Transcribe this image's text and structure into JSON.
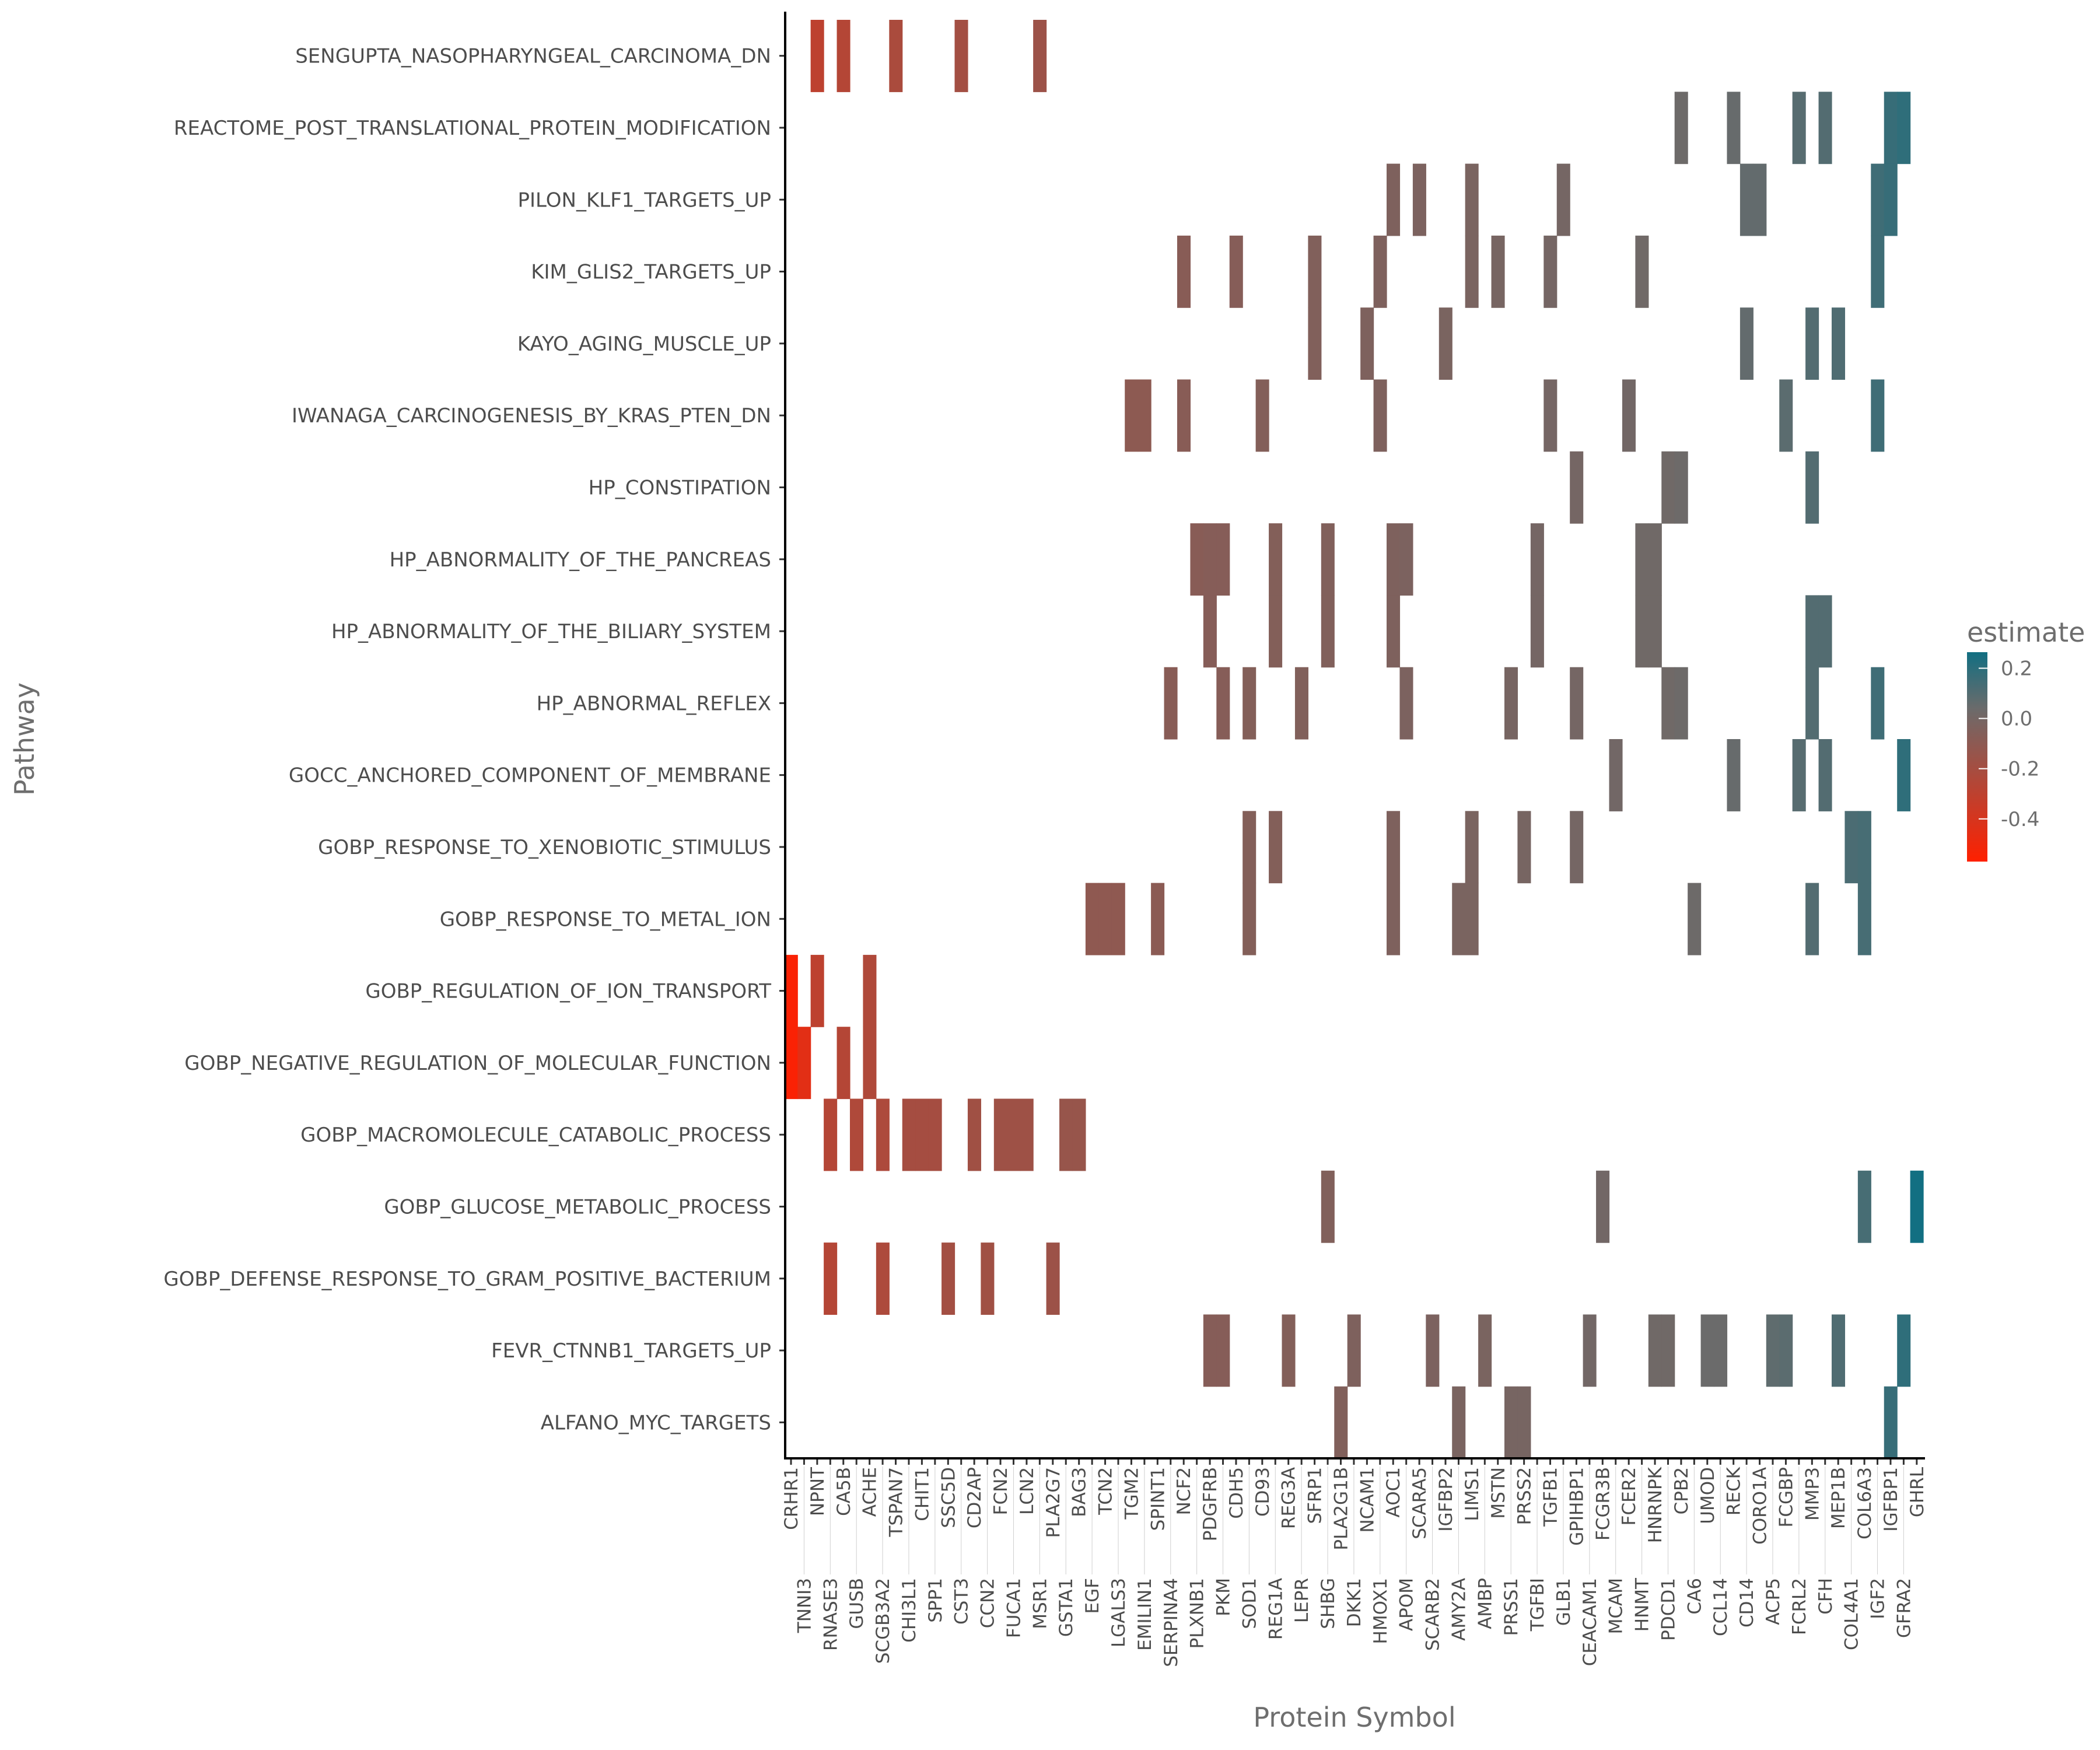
{
  "chart_data": {
    "type": "heatmap",
    "xlabel": "Protein Symbol",
    "ylabel": "Pathway",
    "legend": {
      "title": "estimate",
      "ticks": [
        0.2,
        0.0,
        -0.2,
        -0.4
      ],
      "range": [
        -0.57,
        0.264
      ],
      "placement": "right"
    },
    "colors": {
      "low": "#ff2000",
      "mid": "#6b6b6b",
      "high": "#126f82",
      "mid_value": 0.04
    },
    "grid": false,
    "pathways": [
      "SENGUPTA_NASOPHARYNGEAL_CARCINOMA_DN",
      "REACTOME_POST_TRANSLATIONAL_PROTEIN_MODIFICATION",
      "PILON_KLF1_TARGETS_UP",
      "KIM_GLIS2_TARGETS_UP",
      "KAYO_AGING_MUSCLE_UP",
      "IWANAGA_CARCINOGENESIS_BY_KRAS_PTEN_DN",
      "HP_CONSTIPATION",
      "HP_ABNORMALITY_OF_THE_PANCREAS",
      "HP_ABNORMALITY_OF_THE_BILIARY_SYSTEM",
      "HP_ABNORMAL_REFLEX",
      "GOCC_ANCHORED_COMPONENT_OF_MEMBRANE",
      "GOBP_RESPONSE_TO_XENOBIOTIC_STIMULUS",
      "GOBP_RESPONSE_TO_METAL_ION",
      "GOBP_REGULATION_OF_ION_TRANSPORT",
      "GOBP_NEGATIVE_REGULATION_OF_MOLECULAR_FUNCTION",
      "GOBP_MACROMOLECULE_CATABOLIC_PROCESS",
      "GOBP_GLUCOSE_METABOLIC_PROCESS",
      "GOBP_DEFENSE_RESPONSE_TO_GRAM_POSITIVE_BACTERIUM",
      "FEVR_CTNNB1_TARGETS_UP",
      "ALFANO_MYC_TARGETS"
    ],
    "proteins": [
      "CRHR1",
      "TNNI3",
      "NPNT",
      "RNASE3",
      "CA5B",
      "GUSB",
      "ACHE",
      "SCGB3A2",
      "TSPAN7",
      "CHI3L1",
      "CHIT1",
      "SPP1",
      "SSC5D",
      "CST3",
      "CD2AP",
      "CCN2",
      "FCN2",
      "FUCA1",
      "LCN2",
      "MSR1",
      "PLA2G7",
      "GSTA1",
      "BAG3",
      "EGF",
      "TCN2",
      "LGALS3",
      "TGM2",
      "EMILIN1",
      "SPINT1",
      "SERPINA4",
      "NCF2",
      "PLXNB1",
      "PDGFRB",
      "PKM",
      "CDH5",
      "SOD1",
      "CD93",
      "REG1A",
      "REG3A",
      "LEPR",
      "SFRP1",
      "SHBG",
      "PLA2G1B",
      "DKK1",
      "NCAM1",
      "HMOX1",
      "AOC1",
      "APOM",
      "SCARA5",
      "SCARB2",
      "IGFBP2",
      "AMY2A",
      "LIMS1",
      "AMBP",
      "MSTN",
      "PRSS1",
      "PRSS2",
      "TGFBI",
      "TGFB1",
      "GLB1",
      "GPIHBP1",
      "CEACAM1",
      "FCGR3B",
      "MCAM",
      "FCER2",
      "HNMT",
      "HNRNPK",
      "PDCD1",
      "CPB2",
      "CA6",
      "UMOD",
      "CCL14",
      "RECK",
      "CD14",
      "CORO1A",
      "ACP5",
      "FCGBP",
      "FCRL2",
      "MMP3",
      "CFH",
      "MEP1B",
      "COL4A1",
      "COL6A3",
      "IGF2",
      "IGFBP1",
      "GFRA2",
      "GHRL"
    ],
    "estimates": [
      -0.55,
      -0.45,
      -0.3,
      -0.26,
      -0.26,
      -0.24,
      -0.24,
      -0.23,
      -0.22,
      -0.2,
      -0.2,
      -0.2,
      -0.19,
      -0.19,
      -0.18,
      -0.18,
      -0.17,
      -0.17,
      -0.17,
      -0.16,
      -0.16,
      -0.14,
      -0.14,
      -0.11,
      -0.11,
      -0.11,
      -0.1,
      -0.1,
      -0.09,
      -0.08,
      -0.08,
      -0.08,
      -0.07,
      -0.07,
      -0.07,
      -0.06,
      -0.06,
      -0.06,
      -0.06,
      -0.05,
      -0.05,
      -0.05,
      -0.05,
      -0.04,
      -0.04,
      -0.04,
      -0.04,
      -0.03,
      -0.03,
      -0.03,
      -0.02,
      -0.02,
      -0.02,
      -0.02,
      -0.01,
      -0.01,
      -0.01,
      0,
      0,
      0,
      0,
      0.01,
      0.01,
      0.01,
      0.01,
      0.02,
      0.02,
      0.02,
      0.03,
      0.03,
      0.04,
      0.04,
      0.05,
      0.06,
      0.06,
      0.07,
      0.08,
      0.09,
      0.1,
      0.1,
      0.11,
      0.12,
      0.13,
      0.15,
      0.17,
      0.19,
      0.27
    ],
    "cells": [
      [
        "NPNT",
        "CA5B",
        "TSPAN7",
        "CST3",
        "MSR1"
      ],
      [
        "CPB2",
        "RECK",
        "FCRL2",
        "CFH",
        "IGFBP1",
        "GFRA2"
      ],
      [
        "AOC1",
        "SCARA5",
        "LIMS1",
        "GLB1",
        "CD14",
        "CORO1A",
        "IGF2",
        "IGFBP1"
      ],
      [
        "NCF2",
        "CDH5",
        "SFRP1",
        "HMOX1",
        "LIMS1",
        "MSTN",
        "TGFB1",
        "HNMT",
        "IGF2"
      ],
      [
        "SFRP1",
        "NCAM1",
        "IGFBP2",
        "CD14",
        "MMP3",
        "MEP1B"
      ],
      [
        "TGM2",
        "EMILIN1",
        "NCF2",
        "CD93",
        "HMOX1",
        "TGFB1",
        "FCER2",
        "FCGBP",
        "IGF2"
      ],
      [
        "GPIHBP1",
        "PDCD1",
        "CPB2",
        "MMP3"
      ],
      [
        "PLXNB1",
        "PDGFRB",
        "PKM",
        "REG1A",
        "SHBG",
        "AOC1",
        "APOM",
        "TGFBI",
        "HNMT",
        "HNRNPK"
      ],
      [
        "PDGFRB",
        "REG1A",
        "SHBG",
        "AOC1",
        "TGFBI",
        "HNMT",
        "HNRNPK",
        "MMP3",
        "CFH"
      ],
      [
        "SERPINA4",
        "PKM",
        "SOD1",
        "LEPR",
        "APOM",
        "PRSS1",
        "GPIHBP1",
        "PDCD1",
        "CPB2",
        "MMP3",
        "IGF2"
      ],
      [
        "MCAM",
        "RECK",
        "FCRL2",
        "CFH",
        "GFRA2"
      ],
      [
        "SOD1",
        "REG1A",
        "AOC1",
        "LIMS1",
        "PRSS2",
        "GPIHBP1",
        "COL4A1",
        "COL6A3"
      ],
      [
        "EGF",
        "TCN2",
        "LGALS3",
        "SPINT1",
        "SOD1",
        "AOC1",
        "AMY2A",
        "LIMS1",
        "CA6",
        "MMP3",
        "COL6A3"
      ],
      [
        "CRHR1",
        "NPNT",
        "ACHE"
      ],
      [
        "CRHR1",
        "TNNI3",
        "CA5B",
        "ACHE"
      ],
      [
        "RNASE3",
        "GUSB",
        "SCGB3A2",
        "CHI3L1",
        "CHIT1",
        "SPP1",
        "CD2AP",
        "FCN2",
        "FUCA1",
        "LCN2",
        "GSTA1",
        "BAG3"
      ],
      [
        "SHBG",
        "FCGR3B",
        "COL6A3",
        "GHRL"
      ],
      [
        "RNASE3",
        "SCGB3A2",
        "SSC5D",
        "CCN2",
        "PLA2G7"
      ],
      [
        "PDGFRB",
        "PKM",
        "REG3A",
        "DKK1",
        "SCARB2",
        "AMBP",
        "CEACAM1",
        "HNRNPK",
        "PDCD1",
        "UMOD",
        "CCL14",
        "ACP5",
        "FCGBP",
        "MEP1B",
        "GFRA2"
      ],
      [
        "PLA2G1B",
        "AMY2A",
        "PRSS1",
        "PRSS2",
        "IGFBP1"
      ]
    ]
  }
}
